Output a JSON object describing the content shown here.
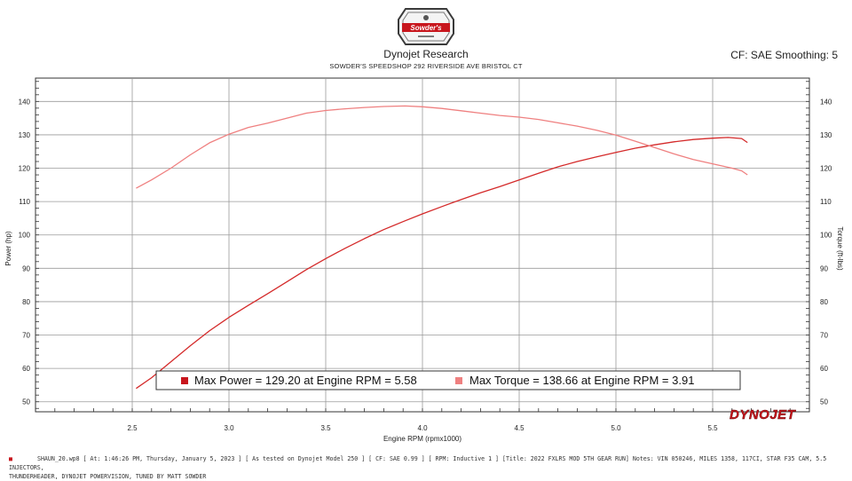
{
  "header": {
    "logo_text": "Sowder's",
    "title": "Dynojet Research",
    "subtitle": "SOWDER'S SPEEDSHOP 292 RIVERSIDE AVE BRISTOL CT",
    "correction": "CF: SAE Smoothing: 5"
  },
  "legend": {
    "power_text": "Max Power = 129.20 at Engine RPM = 5.58",
    "torque_text": "Max Torque = 138.66 at Engine RPM = 3.91"
  },
  "brand": "DYNOJET",
  "footer": {
    "line1": "SHAUN_20.wp8 [ At: 1:46:26 PM, Thursday, January 5, 2023 ] [ As tested on Dynojet Model 250 ] [ CF: SAE 0.99 ] [ RPM: Inductive 1 ] [Title: 2022 FXLRS MOD 5TH GEAR RUN] Notes: VIN 050246, MILES 1358, 117CI, STAR F35 CAM, 5.5 INJECTORS,",
    "line2": "THUNDERHEADER, DYNOJET POWERVISION, TUNED BY MATT SOWDER"
  },
  "colors": {
    "power": "#d42a2a",
    "torque": "#ef8080",
    "grid": "#9a9a9a",
    "brand": "#c8161d"
  },
  "chart_data": {
    "type": "line",
    "xlabel": "Engine RPM (rpmx1000)",
    "ylabel_left": "Power (hp)",
    "ylabel_right": "Torque (ft-lbs)",
    "xlim": [
      2.0,
      6.0
    ],
    "ylim": [
      47,
      147
    ],
    "x_ticks": [
      "2.5",
      "3.0",
      "3.5",
      "4.0",
      "4.5",
      "5.0",
      "5.5"
    ],
    "y_ticks": [
      "50",
      "60",
      "70",
      "80",
      "90",
      "100",
      "110",
      "120",
      "130",
      "140"
    ],
    "grid": true,
    "series": [
      {
        "name": "Power",
        "x": [
          2.52,
          2.6,
          2.7,
          2.8,
          2.9,
          3.0,
          3.1,
          3.2,
          3.3,
          3.4,
          3.5,
          3.6,
          3.7,
          3.8,
          3.9,
          4.0,
          4.1,
          4.2,
          4.3,
          4.4,
          4.5,
          4.6,
          4.7,
          4.8,
          4.9,
          5.0,
          5.1,
          5.2,
          5.3,
          5.4,
          5.5,
          5.58,
          5.65,
          5.68
        ],
        "values": [
          54.0,
          57.2,
          62.0,
          66.8,
          71.3,
          75.3,
          78.9,
          82.4,
          86.0,
          89.6,
          92.9,
          96.0,
          98.9,
          101.6,
          104.0,
          106.3,
          108.5,
          110.6,
          112.6,
          114.5,
          116.5,
          118.5,
          120.4,
          122.0,
          123.4,
          124.7,
          126.0,
          127.0,
          127.9,
          128.6,
          129.0,
          129.2,
          128.9,
          127.7
        ]
      },
      {
        "name": "Torque",
        "x": [
          2.52,
          2.6,
          2.7,
          2.8,
          2.9,
          3.0,
          3.1,
          3.2,
          3.3,
          3.4,
          3.5,
          3.6,
          3.7,
          3.8,
          3.91,
          4.0,
          4.1,
          4.2,
          4.3,
          4.4,
          4.5,
          4.6,
          4.7,
          4.8,
          4.9,
          5.0,
          5.1,
          5.2,
          5.3,
          5.4,
          5.5,
          5.6,
          5.65,
          5.68
        ],
        "values": [
          114.0,
          116.5,
          120.0,
          124.0,
          127.6,
          130.2,
          132.2,
          133.5,
          135.0,
          136.5,
          137.3,
          137.8,
          138.2,
          138.5,
          138.66,
          138.4,
          137.9,
          137.2,
          136.5,
          135.8,
          135.3,
          134.6,
          133.6,
          132.6,
          131.4,
          129.9,
          128.1,
          126.2,
          124.3,
          122.6,
          121.3,
          120.0,
          119.2,
          118.0
        ]
      }
    ]
  }
}
